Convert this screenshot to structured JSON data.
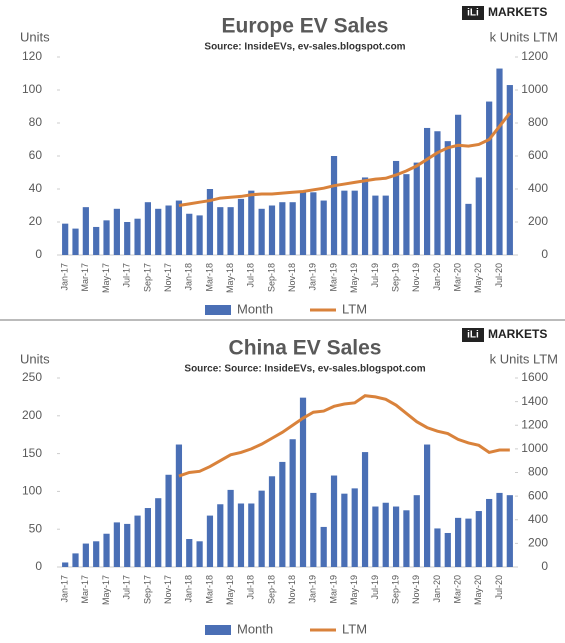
{
  "chart_data": [
    {
      "type": "bar",
      "title": "Europe EV Sales",
      "subtitle": "Source: InsideEVs, ev-sales.blogspot.com",
      "logo": "iLi",
      "brand": "MARKETS",
      "ylabel": "Units",
      "y2label": "k Units LTM",
      "categories": [
        "Jan-17",
        null,
        "Mar-17",
        null,
        "May-17",
        null,
        "Jul-17",
        null,
        "Sep-17",
        null,
        "Nov-17",
        null,
        "Jan-18",
        null,
        "Mar-18",
        null,
        "May-18",
        null,
        "Jul-18",
        null,
        "Sep-18",
        null,
        "Nov-18",
        null,
        "Jan-19",
        null,
        "Mar-19",
        null,
        "May-19",
        null,
        "Jul-19",
        null,
        "Sep-19",
        null,
        "Nov-19",
        null,
        "Jan-20",
        null,
        "Mar-20",
        null,
        "May-20",
        null,
        "Jul-20",
        null
      ],
      "series": [
        {
          "name": "Month",
          "color": "#4a6fb5",
          "values": [
            19,
            16,
            29,
            17,
            21,
            28,
            20,
            22,
            32,
            28,
            30,
            33,
            25,
            24,
            40,
            29,
            29,
            34,
            39,
            28,
            30,
            32,
            32,
            38,
            38,
            33,
            60,
            39,
            39,
            47,
            36,
            36,
            57,
            49,
            56,
            77,
            75,
            69,
            85,
            31,
            47,
            93,
            113,
            103
          ]
        },
        {
          "name": "LTM",
          "color": "#d9823b",
          "axis": "y2",
          "values": [
            null,
            null,
            null,
            null,
            null,
            null,
            null,
            null,
            null,
            null,
            null,
            300,
            310,
            320,
            330,
            345,
            350,
            355,
            365,
            370,
            370,
            375,
            380,
            385,
            395,
            405,
            420,
            430,
            440,
            450,
            460,
            465,
            485,
            510,
            540,
            580,
            620,
            650,
            665,
            660,
            670,
            700,
            780,
            860
          ]
        }
      ],
      "ylim": [
        0,
        120
      ],
      "yticks": [
        0,
        20,
        40,
        60,
        80,
        100,
        120
      ],
      "y2lim": [
        0,
        1200
      ],
      "y2ticks": [
        0,
        200,
        400,
        600,
        800,
        1000,
        1200
      ]
    },
    {
      "type": "bar",
      "title": "China EV Sales",
      "subtitle": "Source: Source: InsideEVs, ev-sales.blogspot.com",
      "logo": "iLi",
      "brand": "MARKETS",
      "ylabel": "Units",
      "y2label": "k Units LTM",
      "categories": [
        "Jan-17",
        null,
        "Mar-17",
        null,
        "May-17",
        null,
        "Jul-17",
        null,
        "Sep-17",
        null,
        "Nov-17",
        null,
        "Jan-18",
        null,
        "Mar-18",
        null,
        "May-18",
        null,
        "Jul-18",
        null,
        "Sep-18",
        null,
        "Nov-18",
        null,
        "Jan-19",
        null,
        "Mar-19",
        null,
        "May-19",
        null,
        "Jul-19",
        null,
        "Sep-19",
        null,
        "Nov-19",
        null,
        "Jan-20",
        null,
        "Mar-20",
        null,
        "May-20",
        null,
        "Jul-20",
        null
      ],
      "series": [
        {
          "name": "Month",
          "color": "#4a6fb5",
          "values": [
            6,
            18,
            31,
            34,
            44,
            59,
            57,
            68,
            78,
            91,
            122,
            162,
            37,
            34,
            68,
            83,
            102,
            84,
            84,
            101,
            120,
            139,
            169,
            224,
            98,
            53,
            121,
            97,
            104,
            152,
            80,
            85,
            80,
            75,
            95,
            162,
            51,
            45,
            65,
            64,
            74,
            90,
            98,
            95
          ]
        },
        {
          "name": "LTM",
          "color": "#d9823b",
          "axis": "y2",
          "values": [
            null,
            null,
            null,
            null,
            null,
            null,
            null,
            null,
            null,
            null,
            null,
            770,
            800,
            810,
            850,
            900,
            950,
            970,
            1000,
            1040,
            1090,
            1140,
            1200,
            1260,
            1310,
            1320,
            1360,
            1380,
            1390,
            1450,
            1440,
            1420,
            1370,
            1300,
            1230,
            1180,
            1150,
            1130,
            1080,
            1050,
            1030,
            970,
            990,
            990
          ]
        }
      ],
      "ylim": [
        0,
        250
      ],
      "yticks": [
        0,
        50,
        100,
        150,
        200,
        250
      ],
      "y2lim": [
        0,
        1600
      ],
      "y2ticks": [
        0,
        200,
        400,
        600,
        800,
        1000,
        1200,
        1400,
        1600
      ]
    }
  ]
}
